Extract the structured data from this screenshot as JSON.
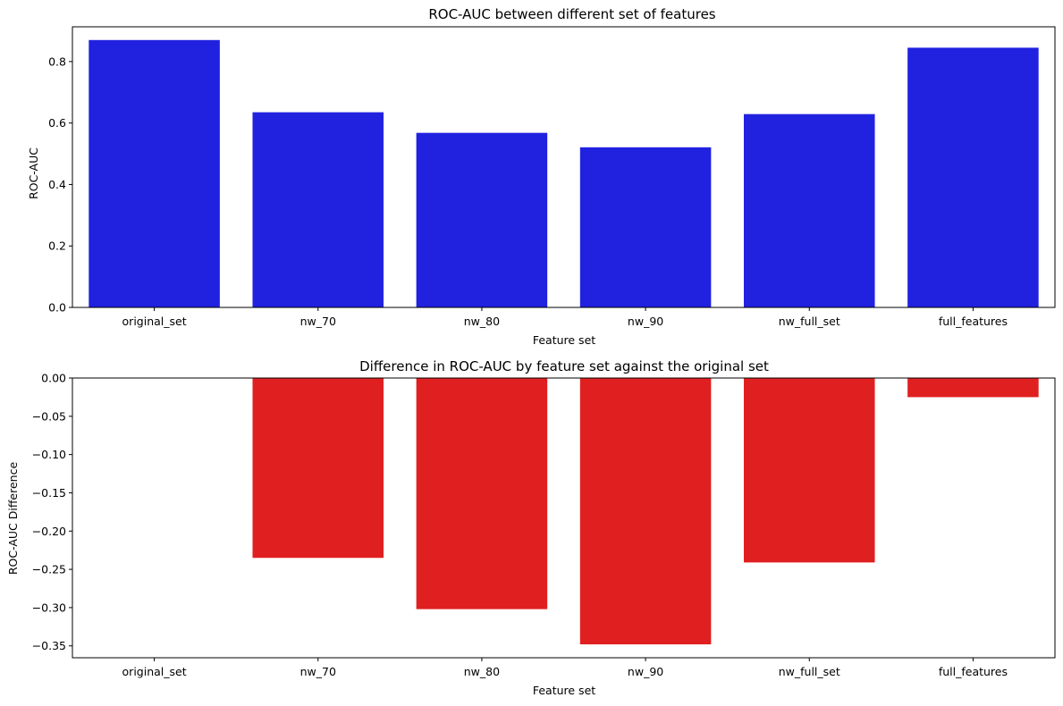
{
  "chart_data": [
    {
      "type": "bar",
      "title": "ROC-AUC between different set of features",
      "xlabel": "Feature set",
      "ylabel": "ROC-AUC",
      "categories": [
        "original_set",
        "nw_70",
        "nw_80",
        "nw_90",
        "nw_full_set",
        "full_features"
      ],
      "values": [
        0.87,
        0.635,
        0.568,
        0.521,
        0.629,
        0.845
      ],
      "ylim": [
        0,
        0.913
      ],
      "yticks": [
        0.0,
        0.2,
        0.4,
        0.6,
        0.8
      ],
      "ytick_labels": [
        "0.0",
        "0.2",
        "0.4",
        "0.6",
        "0.8"
      ],
      "color": "#2121e0",
      "grid": false,
      "legend": "none"
    },
    {
      "type": "bar",
      "title": "Difference in ROC-AUC by feature set against the original set",
      "xlabel": "Feature set",
      "ylabel": "ROC-AUC Difference",
      "categories": [
        "original_set",
        "nw_70",
        "nw_80",
        "nw_90",
        "nw_full_set",
        "full_features"
      ],
      "values": [
        0.0,
        -0.235,
        -0.302,
        -0.348,
        -0.241,
        -0.025
      ],
      "ylim": [
        -0.3655,
        0.0
      ],
      "yticks": [
        0.0,
        -0.05,
        -0.1,
        -0.15,
        -0.2,
        -0.25,
        -0.3,
        -0.35
      ],
      "ytick_labels": [
        "0.00",
        "−0.05",
        "−0.10",
        "−0.15",
        "−0.20",
        "−0.25",
        "−0.30",
        "−0.35"
      ],
      "color": "#e02020",
      "grid": false,
      "legend": "none"
    }
  ]
}
